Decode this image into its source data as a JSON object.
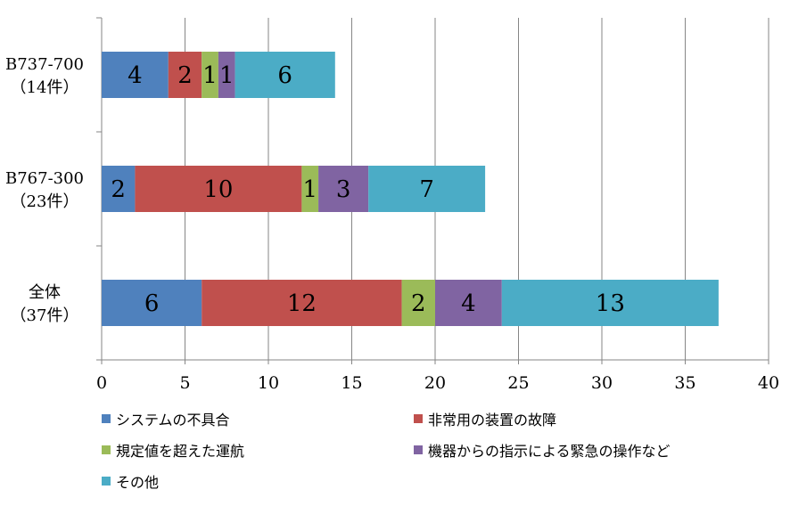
{
  "chart_data": {
    "type": "bar",
    "orientation": "horizontal",
    "stacked": true,
    "categories": [
      {
        "line1": "B737-700",
        "line2": "（14件）"
      },
      {
        "line1": "B767-300",
        "line2": "（23件）"
      },
      {
        "line1": "全体",
        "line2": "（37件）"
      }
    ],
    "series": [
      {
        "name": "システムの不具合",
        "color": "#4F81BD",
        "values": [
          4,
          2,
          6
        ]
      },
      {
        "name": "非常用の装置の故障",
        "color": "#C0504D",
        "values": [
          2,
          10,
          12
        ]
      },
      {
        "name": "規定値を超えた運航",
        "color": "#9BBB59",
        "values": [
          1,
          1,
          2
        ]
      },
      {
        "name": "機器からの指示による緊急の操作など",
        "color": "#8064A2",
        "values": [
          1,
          3,
          4
        ]
      },
      {
        "name": "その他",
        "color": "#4BACC6",
        "values": [
          6,
          7,
          13
        ]
      }
    ],
    "xlim": [
      0,
      40
    ],
    "xticks": [
      "0",
      "5",
      "10",
      "15",
      "20",
      "25",
      "30",
      "35",
      "40"
    ],
    "grid": "vertical",
    "legend_position": "bottom"
  }
}
